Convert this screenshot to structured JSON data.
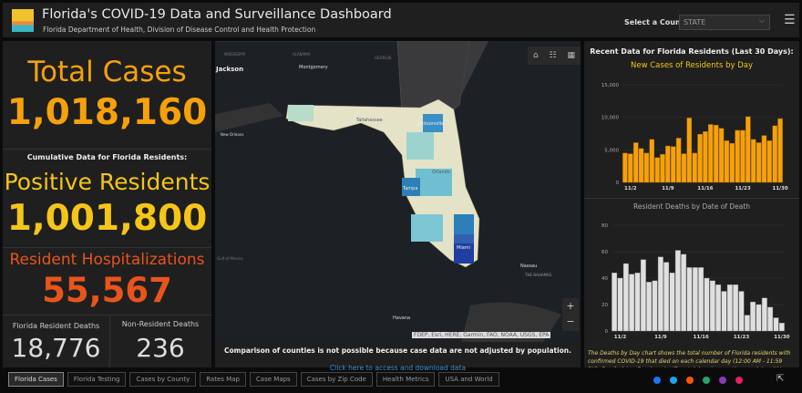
{
  "header": {
    "title": "Florida's COVID-19 Data and Surveillance Dashboard",
    "subtitle": "Florida Department of Health, Division of Disease Control and Health Protection",
    "select_label": "Select a County",
    "select_value": "STATE"
  },
  "left": {
    "total_label": "Total Cases",
    "total_value": "1,018,160",
    "cumulative_label": "Cumulative Data for Florida Residents:",
    "positive_label": "Positive Residents",
    "positive_value": "1,001,800",
    "hosp_label": "Resident Hospitalizations",
    "hosp_value": "55,567",
    "deaths_label": "Florida Resident Deaths",
    "deaths_value": "18,776",
    "nonres_label": "Non-Resident Deaths",
    "nonres_value": "236"
  },
  "map": {
    "labels": {
      "mississippi": "MISSISSIPPI",
      "alabama": "ALABAMA",
      "georgia": "GEORGIA",
      "jackson": "Jackson",
      "montgomery": "Montgomery",
      "neworleans": "New Orleans",
      "tallahassee": "Tallahassee",
      "jacksonville": "Jacksonville",
      "orlando": "Orlando",
      "tampa": "Tampa",
      "miami": "Miami",
      "nassau": "Nassau",
      "bahamas": "THE BAHAMAS",
      "havana": "Havana",
      "gulf": "Gulf of Mexico"
    },
    "attribution": "FDEP, Esri, HERE, Garmin, FAO, NOAA, USGS, EPA",
    "note": "Comparison of counties is not possible because case data are not adjusted by population.",
    "link": "Click here to access and download data"
  },
  "right": {
    "heading": "Recent Data for Florida Residents (Last 30 Days):",
    "deaths_note": "The Deaths by Day chart shows the total number of Florida residents with confirmed COVID-19 that died on each calendar day (12:00 AM - 11:59 PM). Death data often has significant delays in reporting, so data within the"
  },
  "colors": {
    "accent": "#f5a10b",
    "yellow": "#f5c518",
    "orange": "#e8541c",
    "bars_deaths": "#e0e0e0"
  },
  "chart_data": [
    {
      "type": "bar",
      "title": "New Cases of Residents by Day",
      "ylim": [
        0,
        15000
      ],
      "yticks": [
        "0",
        "5,000",
        "10,000",
        "15,000"
      ],
      "xticks": [
        "11/2",
        "11/9",
        "11/16",
        "11/23",
        "11/30"
      ],
      "categories": [
        "11/1",
        "11/2",
        "11/3",
        "11/4",
        "11/5",
        "11/6",
        "11/7",
        "11/8",
        "11/9",
        "11/10",
        "11/11",
        "11/12",
        "11/13",
        "11/14",
        "11/15",
        "11/16",
        "11/17",
        "11/18",
        "11/19",
        "11/20",
        "11/21",
        "11/22",
        "11/23",
        "11/24",
        "11/25",
        "11/26",
        "11/27",
        "11/28",
        "11/29",
        "11/30"
      ],
      "values": [
        4500,
        4400,
        6100,
        5200,
        4500,
        6600,
        3800,
        4300,
        5600,
        5500,
        6800,
        4400,
        9900,
        4500,
        7400,
        7800,
        8900,
        8800,
        8300,
        6400,
        6000,
        8000,
        8000,
        10100,
        6600,
        6100,
        7200,
        6400,
        8700,
        9800
      ]
    },
    {
      "type": "bar",
      "title": "Resident Deaths by Date of Death",
      "ylim": [
        0,
        80
      ],
      "yticks": [
        "0",
        "20",
        "40",
        "60",
        "80"
      ],
      "xticks": [
        "11/2",
        "11/9",
        "11/16",
        "11/23",
        "11/30"
      ],
      "categories": [
        "11/1",
        "11/2",
        "11/3",
        "11/4",
        "11/5",
        "11/6",
        "11/7",
        "11/8",
        "11/9",
        "11/10",
        "11/11",
        "11/12",
        "11/13",
        "11/14",
        "11/15",
        "11/16",
        "11/17",
        "11/18",
        "11/19",
        "11/20",
        "11/21",
        "11/22",
        "11/23",
        "11/24",
        "11/25",
        "11/26",
        "11/27",
        "11/28",
        "11/29",
        "11/30"
      ],
      "values": [
        44,
        40,
        51,
        43,
        44,
        54,
        37,
        38,
        56,
        52,
        44,
        61,
        58,
        48,
        48,
        48,
        40,
        38,
        35,
        30,
        35,
        35,
        30,
        12,
        22,
        20,
        25,
        18,
        10,
        6
      ]
    }
  ],
  "tabs": [
    "Florida Cases",
    "Florida Testing",
    "Cases by County",
    "Rates Map",
    "Case Maps",
    "Cases by Zip Code",
    "Health Metrics",
    "USA and World"
  ],
  "social": [
    "facebook-icon",
    "twitter-icon",
    "reddit-icon",
    "share-icon",
    "email-icon",
    "link-icon"
  ]
}
